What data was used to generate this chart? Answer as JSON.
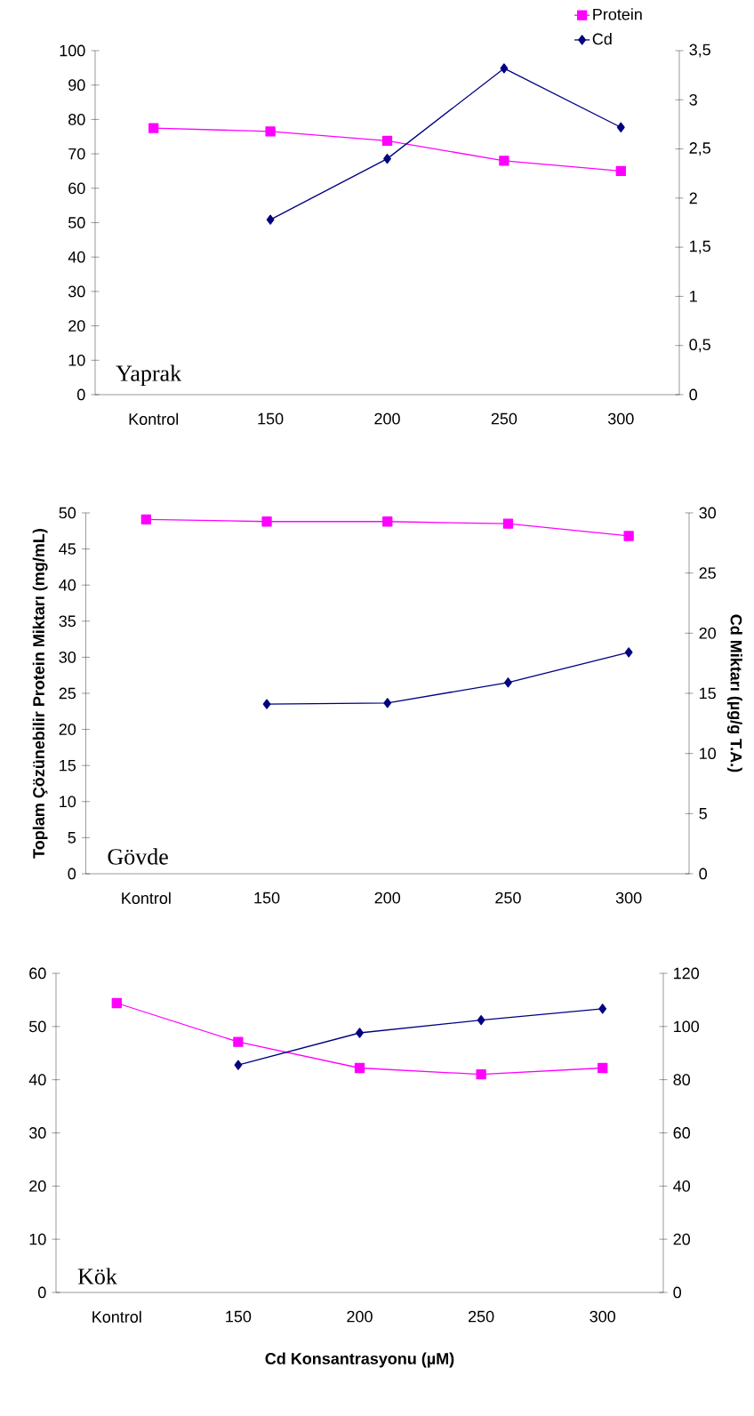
{
  "chart_data": [
    {
      "type": "line",
      "categories": [
        "Kontrol",
        "150",
        "200",
        "250",
        "300"
      ],
      "legend": "top right",
      "annotations": [
        "Yaprak"
      ],
      "series": [
        {
          "name": "Protein",
          "color": "#ff00ff",
          "marker": "square",
          "values": [
            77.5,
            76.5,
            73.8,
            68,
            65
          ]
        },
        {
          "name": "Cd",
          "color": "#000080",
          "marker": "diamond",
          "axis": "y2",
          "values": [
            null,
            1.78,
            2.4,
            3.32,
            2.72
          ]
        }
      ],
      "ylim": [
        0,
        100
      ],
      "yticks": [
        0,
        10,
        20,
        30,
        40,
        50,
        60,
        70,
        80,
        90,
        100
      ],
      "y2lim": [
        0,
        3.5
      ],
      "y2ticks": [
        0,
        {
          "value": 0.5,
          "label": "0,5"
        },
        1,
        {
          "value": 1.5,
          "label": "1,5"
        },
        2,
        {
          "value": 2.5,
          "label": "2,5"
        },
        3,
        {
          "value": 3.5,
          "label": "3,5"
        }
      ]
    },
    {
      "type": "line",
      "categories": [
        "Kontrol",
        "150",
        "200",
        "250",
        "300"
      ],
      "annotations": [
        "Gövde"
      ],
      "ylabel": "Toplam Çözünebilir Protein Miktarı (mg/mL)",
      "y2label": "Cd Miktarı (µg/g T.A.)",
      "series": [
        {
          "color": "#ff00ff",
          "marker": "square",
          "values": [
            49.1,
            48.8,
            48.8,
            48.5,
            46.8
          ]
        },
        {
          "color": "#000080",
          "marker": "diamond",
          "axis": "y2",
          "values": [
            null,
            14.1,
            14.2,
            15.9,
            18.4
          ]
        }
      ],
      "ylim": [
        0,
        50
      ],
      "yticks": [
        0,
        5,
        10,
        15,
        20,
        25,
        30,
        35,
        40,
        45,
        50
      ],
      "y2lim": [
        0,
        30
      ],
      "y2ticks": [
        0,
        5,
        10,
        15,
        20,
        25,
        30
      ]
    },
    {
      "type": "line",
      "categories": [
        "Kontrol",
        "150",
        "200",
        "250",
        "300"
      ],
      "annotations": [
        "Kök"
      ],
      "xlabel": "Cd Konsantrasyonu (µM)",
      "series": [
        {
          "color": "#ff00ff",
          "marker": "square",
          "values": [
            54.4,
            47.1,
            42.2,
            41,
            42.2
          ]
        },
        {
          "color": "#000080",
          "marker": "diamond",
          "axis": "y2",
          "values": [
            null,
            85.5,
            97.6,
            102.4,
            106.7
          ]
        }
      ],
      "ylim": [
        0,
        60
      ],
      "yticks": [
        0,
        10,
        20,
        30,
        40,
        50,
        60
      ],
      "y2lim": [
        0,
        120
      ],
      "y2ticks": [
        0,
        20,
        40,
        60,
        80,
        100,
        120
      ]
    }
  ]
}
